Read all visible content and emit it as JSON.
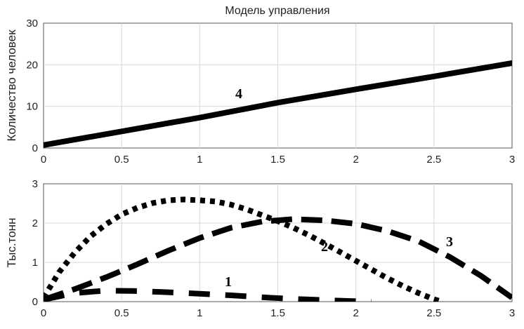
{
  "chart_data": [
    {
      "type": "line",
      "title": "Модель управления",
      "xlabel": "",
      "ylabel": "Количество человек",
      "xlim": [
        0,
        3
      ],
      "ylim": [
        0,
        30
      ],
      "xticks": [
        "0",
        "0.5",
        "1",
        "1.5",
        "2",
        "2.5",
        "3"
      ],
      "yticks": [
        "0",
        "10",
        "20",
        "30"
      ],
      "grid": true,
      "series": [
        {
          "name": "4",
          "style": "solid",
          "x": [
            0,
            0.5,
            1,
            1.5,
            2,
            2.5,
            3
          ],
          "y": [
            0.7,
            4.0,
            7.3,
            10.9,
            14.1,
            17.2,
            20.4
          ]
        }
      ]
    },
    {
      "type": "line",
      "title": "",
      "xlabel": "",
      "ylabel": "Тыс.тонн",
      "xlim": [
        0,
        3
      ],
      "ylim": [
        0,
        3
      ],
      "xticks": [
        "0",
        "0.5",
        "1",
        "1.5",
        "2",
        "2.5",
        "3"
      ],
      "yticks": [
        "0",
        "1",
        "2",
        "3"
      ],
      "grid": true,
      "series": [
        {
          "name": "1",
          "style": "long-dash",
          "x": [
            0,
            0.2,
            0.4,
            0.6,
            0.8,
            1.0,
            1.2,
            1.4,
            1.6,
            1.8,
            2.0,
            2.1
          ],
          "y": [
            0.05,
            0.22,
            0.28,
            0.27,
            0.24,
            0.2,
            0.16,
            0.11,
            0.07,
            0.04,
            0.01,
            0.0
          ]
        },
        {
          "name": "2",
          "style": "dotted",
          "x": [
            0,
            0.1,
            0.2,
            0.3,
            0.4,
            0.5,
            0.6,
            0.7,
            0.8,
            0.9,
            1.0,
            1.1,
            1.2,
            1.3,
            1.4,
            1.5,
            1.6,
            1.7,
            1.8,
            1.9,
            2.0,
            2.1,
            2.2,
            2.3,
            2.4,
            2.5,
            2.55
          ],
          "y": [
            0.1,
            0.75,
            1.25,
            1.66,
            1.97,
            2.22,
            2.39,
            2.51,
            2.58,
            2.6,
            2.58,
            2.55,
            2.47,
            2.35,
            2.2,
            2.05,
            1.88,
            1.69,
            1.48,
            1.26,
            1.04,
            0.82,
            0.6,
            0.4,
            0.22,
            0.06,
            0.0
          ]
        },
        {
          "name": "3",
          "style": "dashed",
          "x": [
            0,
            0.2,
            0.4,
            0.6,
            0.8,
            1.0,
            1.2,
            1.4,
            1.6,
            1.8,
            2.0,
            2.2,
            2.4,
            2.6,
            2.8,
            3.0
          ],
          "y": [
            0.05,
            0.32,
            0.62,
            0.95,
            1.3,
            1.62,
            1.88,
            2.04,
            2.1,
            2.07,
            1.98,
            1.8,
            1.54,
            1.14,
            0.66,
            0.1
          ]
        }
      ],
      "annotations": [
        "1",
        "2",
        "3"
      ]
    }
  ]
}
